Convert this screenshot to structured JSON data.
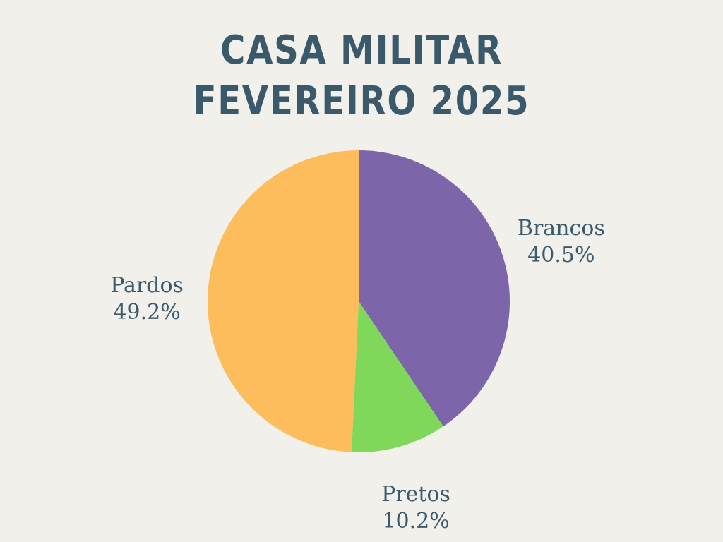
{
  "chart_data": {
    "type": "pie",
    "title": "CASA MILITAR\nFEVEREIRO 2025",
    "title_lines": [
      "CASA MILITAR",
      "FEVEREIRO 2025"
    ],
    "slices": [
      {
        "label": "Brancos",
        "value": 40.5,
        "display": "40.5%",
        "color": "#7c66a9"
      },
      {
        "label": "Pretos",
        "value": 10.2,
        "display": "10.2%",
        "color": "#80d85a"
      },
      {
        "label": "Pardos",
        "value": 49.2,
        "display": "49.2%",
        "color": "#fdbd5d"
      }
    ],
    "start_angle": "top (12 o'clock)",
    "direction": "clockwise",
    "labels": "outside"
  }
}
